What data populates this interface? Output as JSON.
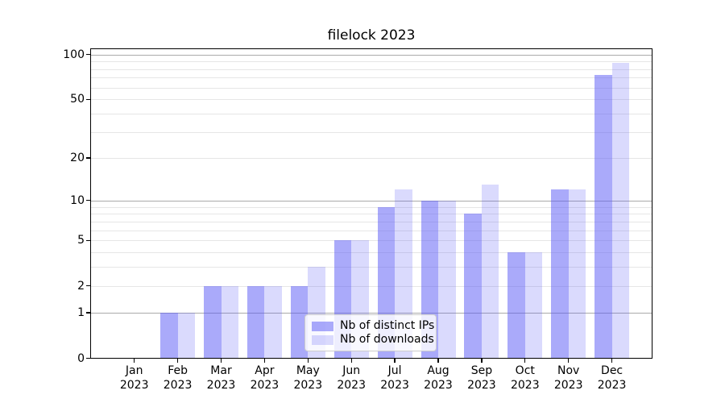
{
  "chart_data": {
    "type": "bar",
    "title": "filelock 2023",
    "categories": [
      "Jan",
      "Feb",
      "Mar",
      "Apr",
      "May",
      "Jun",
      "Jul",
      "Aug",
      "Sep",
      "Oct",
      "Nov",
      "Dec"
    ],
    "year_label": "2023",
    "series": [
      {
        "name": "Nb of distinct IPs",
        "color": "rgba(85, 85, 245, 0.5)",
        "values": [
          0,
          1,
          2,
          2,
          2,
          5,
          9,
          10,
          8,
          4,
          12,
          73
        ]
      },
      {
        "name": "Nb of downloads",
        "color": "rgba(85, 85, 245, 0.22)",
        "values": [
          0,
          1,
          2,
          2,
          3,
          5,
          12,
          10,
          13,
          4,
          12,
          88
        ]
      }
    ],
    "yscale": "log1p",
    "ylim": [
      0,
      110
    ],
    "yticks": [
      0,
      1,
      2,
      5,
      10,
      20,
      50,
      100
    ],
    "grid": {
      "major": [
        1,
        10,
        100
      ],
      "minor": [
        2,
        3,
        4,
        5,
        6,
        7,
        8,
        9,
        20,
        30,
        40,
        50,
        60,
        70,
        80,
        90
      ]
    },
    "legend_position": "lower center",
    "colors": {
      "grid_major": "#aaaaaa",
      "grid_minor": "#e6e6e6",
      "spine": "#000000",
      "text": "#000000"
    }
  }
}
